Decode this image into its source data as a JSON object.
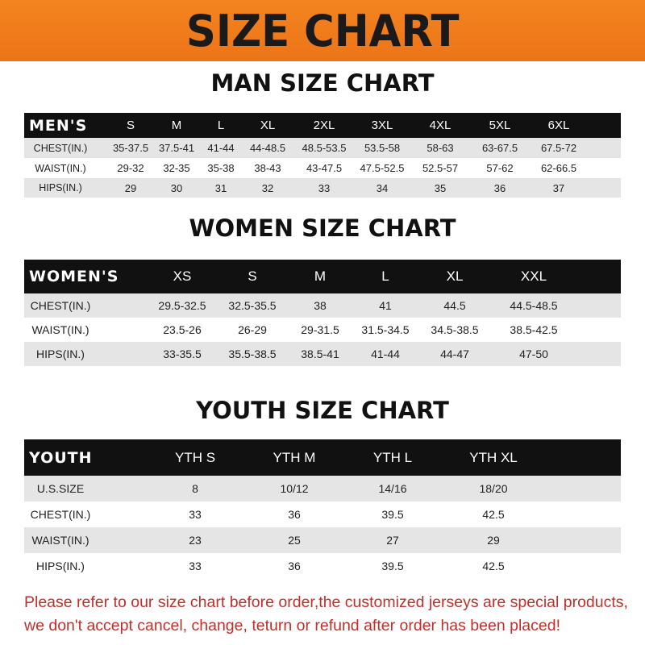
{
  "banner": {
    "title": "SIZE CHART"
  },
  "men": {
    "title": "MAN SIZE CHART",
    "header_label": "MEN'S",
    "sizes": [
      "S",
      "M",
      "L",
      "XL",
      "2XL",
      "3XL",
      "4XL",
      "5XL",
      "6XL"
    ],
    "rows": [
      {
        "label": "CHEST(IN.)",
        "values": [
          "35-37.5",
          "37.5-41",
          "41-44",
          "44-48.5",
          "48.5-53.5",
          "53.5-58",
          "58-63",
          "63-67.5",
          "67.5-72"
        ]
      },
      {
        "label": "WAIST(IN.)",
        "values": [
          "29-32",
          "32-35",
          "35-38",
          "38-43",
          "43-47.5",
          "47.5-52.5",
          "52.5-57",
          "57-62",
          "62-66.5"
        ]
      },
      {
        "label": "HIPS(IN.)",
        "values": [
          "29",
          "30",
          "31",
          "32",
          "33",
          "34",
          "35",
          "36",
          "37"
        ]
      }
    ]
  },
  "women": {
    "title": "WOMEN SIZE CHART",
    "header_label": "WOMEN'S",
    "sizes": [
      "XS",
      "S",
      "M",
      "L",
      "XL",
      "XXL"
    ],
    "rows": [
      {
        "label": "CHEST(IN.)",
        "values": [
          "29.5-32.5",
          "32.5-35.5",
          "38",
          "41",
          "44.5",
          "44.5-48.5"
        ]
      },
      {
        "label": "WAIST(IN.)",
        "values": [
          "23.5-26",
          "26-29",
          "29-31.5",
          "31.5-34.5",
          "34.5-38.5",
          "38.5-42.5"
        ]
      },
      {
        "label": "HIPS(IN.)",
        "values": [
          "33-35.5",
          "35.5-38.5",
          "38.5-41",
          "41-44",
          "44-47",
          "47-50"
        ]
      }
    ]
  },
  "youth": {
    "title": "YOUTH SIZE CHART",
    "header_label": "YOUTH",
    "sizes": [
      "YTH S",
      "YTH M",
      "YTH L",
      "YTH XL"
    ],
    "rows": [
      {
        "label": "U.S.SIZE",
        "values": [
          "8",
          "10/12",
          "14/16",
          "18/20"
        ]
      },
      {
        "label": "CHEST(IN.)",
        "values": [
          "33",
          "36",
          "39.5",
          "42.5"
        ]
      },
      {
        "label": "WAIST(IN.)",
        "values": [
          "23",
          "25",
          "27",
          "29"
        ]
      },
      {
        "label": "HIPS(IN.)",
        "values": [
          "33",
          "36",
          "39.5",
          "42.5"
        ]
      }
    ]
  },
  "footer": {
    "line1": "Please refer to our size chart before order,the customized jerseys are special products,",
    "line2": "we don't accept cancel, change, teturn or refund after order has been placed!"
  },
  "colors": {
    "banner": "#f07a1c",
    "header_row": "#111111",
    "stripe": "#e5e5e5",
    "notice": "#c0302a"
  }
}
